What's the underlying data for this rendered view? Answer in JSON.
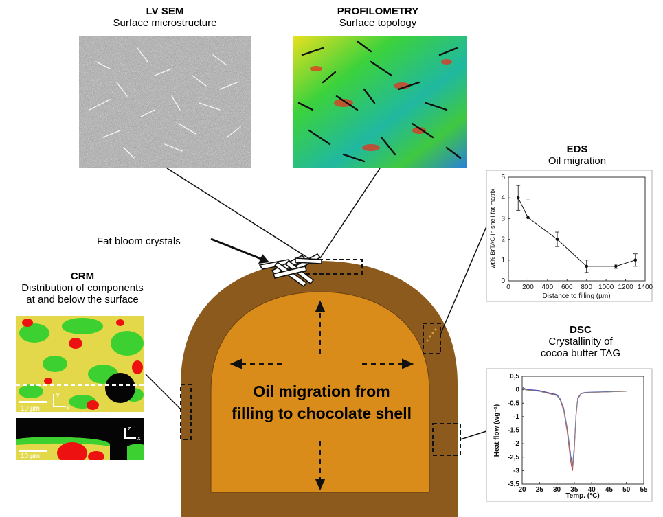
{
  "sections": {
    "lvsem": {
      "title": "LV SEM",
      "subtitle": "Surface microstructure"
    },
    "profilometry": {
      "title": "PROFILOMETRY",
      "subtitle": "Surface topology"
    },
    "eds": {
      "title": "EDS",
      "subtitle": "Oil migration"
    },
    "dsc": {
      "title": "DSC",
      "subtitle_line1": "Crystallinity of",
      "subtitle_line2": "cocoa butter TAG"
    },
    "crm": {
      "title": "CRM",
      "subtitle_line1": "Distribution of components",
      "subtitle_line2": "at and below the surface",
      "scale1": "10 µm",
      "scale2": "10 µm",
      "axis_x": "x",
      "axis_y": "y",
      "axis_z": "z"
    }
  },
  "annotations": {
    "fat_bloom": "Fat bloom crystals",
    "oil_migration_line1": "Oil migration from",
    "oil_migration_line2": "filling to chocolate shell"
  },
  "colors": {
    "shell": "#8b5a1c",
    "filling": "#d98c1a",
    "profilometry_green": "#33cc33",
    "crm_yellow": "#e3d84a",
    "crm_red": "#ee1111"
  },
  "chart_data": [
    {
      "type": "scatter",
      "id": "eds",
      "xlabel": "Distance to filling (µm)",
      "ylabel": "wt% BrTAG in shell fat matrix",
      "xlim": [
        0,
        1400
      ],
      "ylim": [
        0,
        5
      ],
      "xticks": [
        0,
        200,
        400,
        600,
        800,
        1000,
        1200,
        1400
      ],
      "yticks": [
        0,
        1,
        2,
        3,
        4,
        5
      ],
      "x": [
        100,
        200,
        500,
        800,
        1100,
        1300
      ],
      "y": [
        4.0,
        3.05,
        2.0,
        0.7,
        0.7,
        1.0
      ],
      "yerr": [
        0.6,
        0.85,
        0.35,
        0.3,
        0.1,
        0.3
      ]
    },
    {
      "type": "line",
      "id": "dsc",
      "xlabel": "Temp. (°C)",
      "ylabel": "Heat flow (wg⁻¹)",
      "xlim": [
        20,
        55
      ],
      "ylim": [
        -3.5,
        0.5
      ],
      "xticks": [
        20,
        25,
        30,
        35,
        40,
        45,
        50,
        55
      ],
      "yticks": [
        0.5,
        0,
        -0.5,
        -1,
        -1.5,
        -2,
        -2.5,
        -3,
        -3.5
      ],
      "yticklabels": [
        "0,5",
        "0",
        "-0,5",
        "-1",
        "-1,5",
        "-2",
        "-2,5",
        "-3",
        "-3,5"
      ],
      "series": [
        {
          "color": "#d04040",
          "x": [
            20,
            21,
            25,
            30,
            31,
            32,
            33,
            34,
            34.5,
            35,
            35.5,
            36,
            37,
            38,
            40,
            45,
            50
          ],
          "y": [
            0.1,
            0,
            -0.05,
            -0.2,
            -0.4,
            -0.8,
            -1.6,
            -2.7,
            -3.0,
            -2.3,
            -1.0,
            -0.35,
            -0.15,
            -0.12,
            -0.1,
            -0.08,
            -0.06
          ]
        },
        {
          "color": "#4050c0",
          "x": [
            20,
            21,
            25,
            30,
            31,
            32,
            33,
            34,
            34.5,
            35,
            35.5,
            36,
            37,
            38,
            40,
            45,
            50
          ],
          "y": [
            0.12,
            0.02,
            -0.03,
            -0.18,
            -0.35,
            -0.7,
            -1.45,
            -2.45,
            -2.8,
            -2.1,
            -0.9,
            -0.3,
            -0.13,
            -0.1,
            -0.09,
            -0.07,
            -0.05
          ]
        },
        {
          "color": "#888888",
          "x": [
            20,
            21,
            25,
            30,
            31,
            32,
            33,
            34,
            34.5,
            35,
            35.5,
            36,
            37,
            38,
            40,
            45,
            50
          ],
          "y": [
            0.08,
            -0.01,
            -0.06,
            -0.22,
            -0.38,
            -0.75,
            -1.5,
            -2.55,
            -2.9,
            -2.2,
            -0.95,
            -0.33,
            -0.14,
            -0.11,
            -0.1,
            -0.08,
            -0.06
          ]
        }
      ]
    }
  ]
}
